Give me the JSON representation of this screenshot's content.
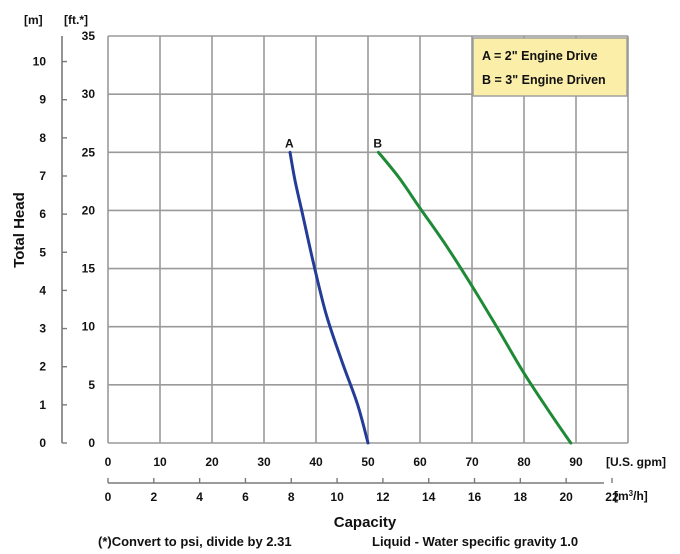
{
  "chart_data": {
    "type": "line",
    "xlabel": "Capacity",
    "ylabel": "Total Head",
    "x_primary": {
      "unit": "[U.S. gpm]",
      "range": [
        0,
        100
      ],
      "ticks": [
        0,
        10,
        20,
        30,
        40,
        50,
        60,
        70,
        80,
        90
      ]
    },
    "x_secondary": {
      "unit": "[m³/h]",
      "range": [
        0,
        22.7
      ],
      "ticks": [
        0,
        2,
        4,
        6,
        8,
        10,
        12,
        14,
        16,
        18,
        20,
        22
      ]
    },
    "y_primary": {
      "unit": "[ft.*]",
      "range": [
        0,
        35
      ],
      "ticks": [
        0,
        5,
        10,
        15,
        20,
        25,
        30,
        35
      ]
    },
    "y_secondary": {
      "unit": "[m]",
      "range": [
        0,
        10.67
      ],
      "ticks": [
        0,
        1,
        2,
        3,
        4,
        5,
        6,
        7,
        8,
        9,
        10
      ]
    },
    "grid": true,
    "legend_position": "top-right",
    "legend": [
      "A = 2\" Engine Drive",
      "B = 3\" Engine Driven"
    ],
    "series": [
      {
        "label": "A",
        "color": "#233d96",
        "x": [
          35,
          36,
          37.5,
          39.5,
          42,
          45,
          48,
          50
        ],
        "y": [
          25,
          22.5,
          19.5,
          15.5,
          11,
          7,
          3.3,
          0
        ]
      },
      {
        "label": "B",
        "color": "#1e8a36",
        "x": [
          52,
          56,
          60,
          65,
          70,
          75,
          80,
          85,
          89
        ],
        "y": [
          25,
          22.8,
          20.2,
          17,
          13.5,
          9.8,
          6,
          2.6,
          0
        ]
      }
    ],
    "footnotes": [
      "(*)Convert to psi, divide by 2.31",
      "Liquid - Water specific gravity 1.0"
    ]
  }
}
